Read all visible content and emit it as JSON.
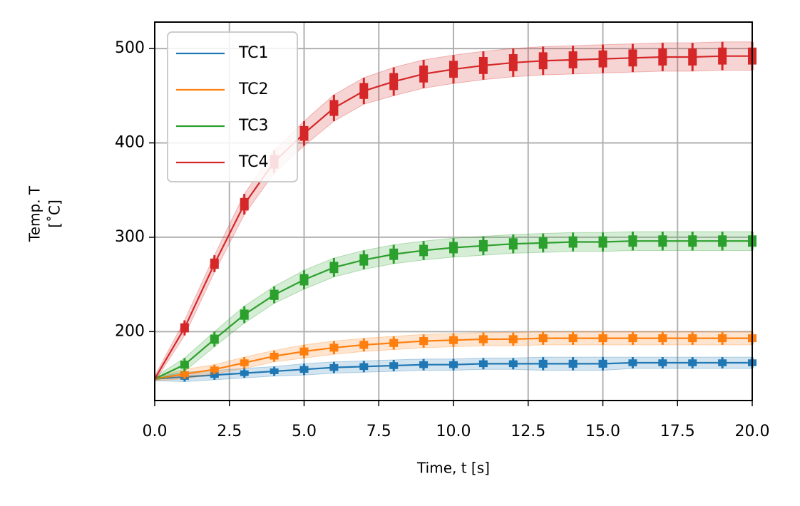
{
  "chart_data": {
    "type": "line",
    "xlabel": "Time, t [s]",
    "ylabel": [
      "Temp. T",
      "[˚C]"
    ],
    "x": [
      0,
      1,
      2,
      3,
      4,
      5,
      6,
      7,
      8,
      9,
      10,
      11,
      12,
      13,
      14,
      15,
      16,
      17,
      18,
      19,
      20
    ],
    "series": [
      {
        "name": "TC1",
        "color": "#1f77b4",
        "values": [
          150,
          152,
          154,
          156,
          158,
          160,
          162,
          163,
          164,
          165,
          165,
          166,
          166,
          166,
          166,
          166,
          167,
          167,
          167,
          167,
          167
        ],
        "errors": [
          2,
          5,
          5,
          5,
          5,
          6,
          6,
          6,
          6,
          6,
          6,
          6,
          6,
          7,
          7,
          7,
          6,
          6,
          6,
          6,
          6
        ]
      },
      {
        "name": "TC2",
        "color": "#ff7f0e",
        "values": [
          150,
          155,
          160,
          167,
          174,
          179,
          183,
          186,
          188,
          190,
          191,
          192,
          192,
          193,
          193,
          193,
          193,
          193,
          193,
          193,
          193
        ],
        "errors": [
          2,
          5,
          5,
          6,
          6,
          7,
          7,
          7,
          7,
          7,
          7,
          7,
          7,
          7,
          7,
          7,
          7,
          7,
          7,
          7,
          7
        ]
      },
      {
        "name": "TC3",
        "color": "#2ca02c",
        "values": [
          150,
          165,
          192,
          218,
          239,
          255,
          268,
          276,
          282,
          286,
          289,
          291,
          293,
          294,
          295,
          295,
          296,
          296,
          296,
          296,
          296
        ],
        "errors": [
          2,
          7,
          8,
          9,
          9,
          10,
          10,
          10,
          10,
          10,
          10,
          10,
          10,
          10,
          10,
          10,
          10,
          10,
          10,
          10,
          10
        ]
      },
      {
        "name": "TC4",
        "color": "#d62728",
        "values": [
          150,
          204,
          272,
          335,
          380,
          410,
          437,
          455,
          465,
          473,
          478,
          482,
          485,
          487,
          488,
          489,
          490,
          491,
          491,
          492,
          492
        ],
        "errors": [
          3,
          8,
          9,
          11,
          12,
          13,
          14,
          14,
          15,
          15,
          15,
          15,
          15,
          15,
          15,
          15,
          15,
          15,
          15,
          15,
          15
        ]
      }
    ],
    "xlim": [
      0,
      20
    ],
    "xticks": [
      {
        "value": 0,
        "label": "0.0"
      },
      2.5,
      {
        "value": 5,
        "label": "5.0"
      },
      7.5,
      {
        "value": 10,
        "label": "10.0"
      },
      12.5,
      {
        "value": 15,
        "label": "15.0"
      },
      17.5,
      {
        "value": 20,
        "label": "20.0"
      }
    ],
    "ylim": [
      127,
      528
    ],
    "yticks": [
      200,
      300,
      400,
      500
    ],
    "grid": true,
    "legend": "upper left"
  }
}
